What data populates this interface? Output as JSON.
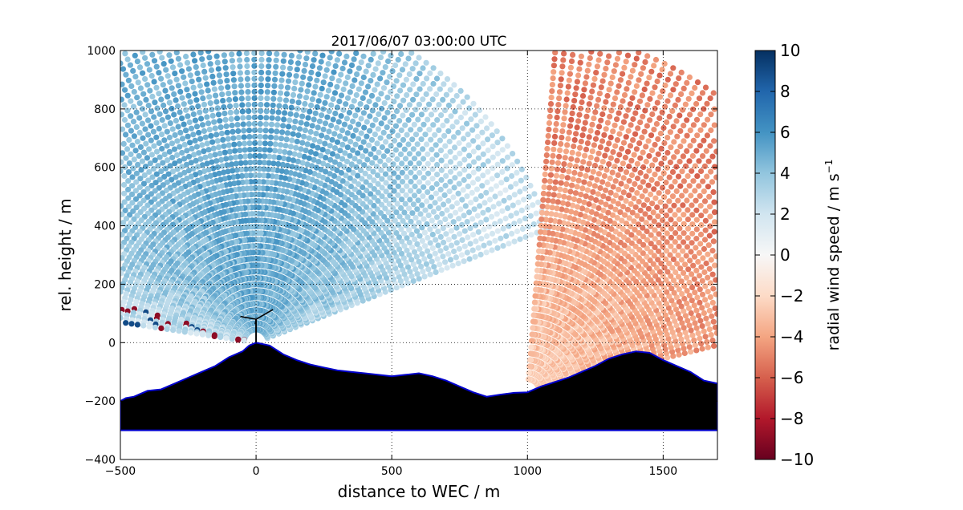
{
  "chart_data": {
    "type": "heatmap",
    "title": "2017/06/07 03:00:00 UTC",
    "xlabel": "distance to WEC / m",
    "ylabel": "rel. height / m",
    "xlim": [
      -500,
      1700
    ],
    "ylim": [
      -400,
      1000
    ],
    "xticks": [
      -500,
      0,
      500,
      1000,
      1500
    ],
    "yticks": [
      -400,
      -200,
      0,
      200,
      400,
      600,
      800,
      1000
    ],
    "x_tick_labels": [
      "−500",
      "0",
      "500",
      "1000",
      "1500"
    ],
    "y_tick_labels": [
      "−400",
      "−200",
      "0",
      "200",
      "400",
      "600",
      "800",
      "1000"
    ],
    "grid": true,
    "colorbar": {
      "label": "radial wind speed / m s",
      "label_superscript": "−1",
      "range": [
        -10,
        10
      ],
      "ticks": [
        -10,
        -8,
        -6,
        -4,
        -2,
        0,
        2,
        4,
        6,
        8,
        10
      ],
      "tick_labels": [
        "−10",
        "−8",
        "−6",
        "−4",
        "−2",
        "0",
        "2",
        "4",
        "6",
        "8",
        "10"
      ],
      "colormap": "RdBu"
    },
    "scans": [
      {
        "origin": [
          0,
          0
        ],
        "az_range_deg": [
          20,
          172
        ],
        "range_max_m": 1150,
        "mean_speed_m_s": 5
      },
      {
        "origin": [
          1000,
          -170
        ],
        "az_range_deg": [
          13,
          85
        ],
        "range_max_m": 1250,
        "mean_speed_m_s": -5
      }
    ],
    "terrain_profile": {
      "x": [
        -500,
        -480,
        -450,
        -400,
        -350,
        -300,
        -250,
        -200,
        -150,
        -100,
        -50,
        -25,
        0,
        25,
        50,
        100,
        150,
        200,
        250,
        300,
        350,
        400,
        450,
        500,
        550,
        600,
        650,
        700,
        750,
        800,
        850,
        900,
        950,
        1000,
        1050,
        1100,
        1150,
        1200,
        1250,
        1300,
        1350,
        1400,
        1450,
        1500,
        1550,
        1600,
        1650,
        1700
      ],
      "y": [
        -200,
        -190,
        -185,
        -165,
        -160,
        -140,
        -120,
        -100,
        -80,
        -50,
        -30,
        -10,
        0,
        -5,
        -10,
        -40,
        -60,
        -75,
        -85,
        -95,
        -100,
        -105,
        -110,
        -115,
        -110,
        -105,
        -115,
        -130,
        -150,
        -170,
        -185,
        -178,
        -172,
        -170,
        -150,
        -135,
        -120,
        -100,
        -80,
        -55,
        -40,
        -30,
        -35,
        -60,
        -80,
        -100,
        -130,
        -140
      ],
      "floor": -300
    },
    "turbine": {
      "x": 0,
      "hub_height_m": 80,
      "rotor_radius_m": 45
    }
  }
}
